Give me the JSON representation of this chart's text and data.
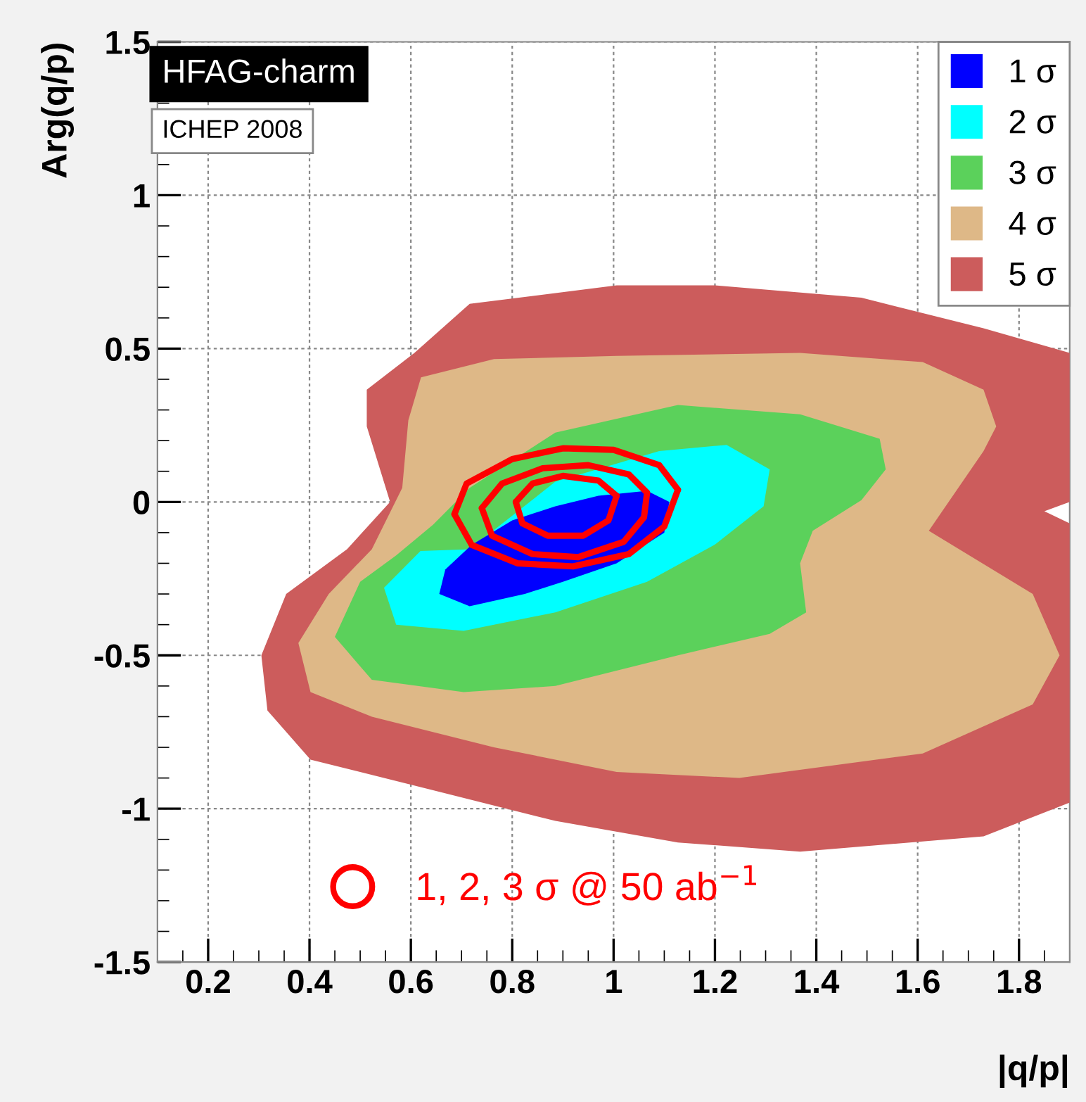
{
  "chart_data": {
    "type": "area",
    "xlabel": "|q/p|",
    "ylabel": "Arg(q/p)",
    "xlim": [
      0.1,
      1.9
    ],
    "ylim": [
      -1.5,
      1.5
    ],
    "xticks": [
      0.2,
      0.4,
      0.6,
      0.8,
      1,
      1.2,
      1.4,
      1.6,
      1.8
    ],
    "yticks": [
      -1.5,
      -1,
      -0.5,
      0,
      0.5,
      1,
      1.5
    ],
    "grid": true,
    "legend": "top right",
    "annotations": [
      "HFAG-charm",
      "ICHEP 2008"
    ],
    "series": [
      {
        "name": "1 σ",
        "color": "#0000ff",
        "x": [
          0.885,
          0.97,
          1.066,
          1.11,
          1.1,
          1.006,
          0.9,
          0.825,
          0.716,
          0.656,
          0.668,
          0.72,
          0.8
        ],
        "values": [
          -0.014,
          0.02,
          0.036,
          0.0,
          -0.1,
          -0.2,
          -0.26,
          -0.3,
          -0.34,
          -0.3,
          -0.22,
          -0.14,
          -0.06
        ]
      },
      {
        "name": "2 σ",
        "color": "#00ffff",
        "x": [
          0.716,
          0.885,
          1.09,
          1.223,
          1.308,
          1.296,
          1.199,
          1.066,
          0.885,
          0.704,
          0.571,
          0.547,
          0.619
        ],
        "values": [
          -0.154,
          0.066,
          0.166,
          0.186,
          0.106,
          -0.014,
          -0.14,
          -0.26,
          -0.36,
          -0.42,
          -0.4,
          -0.28,
          -0.16
        ]
      },
      {
        "name": "3 σ",
        "color": "#5bd15b",
        "x": [
          0.716,
          0.885,
          1.127,
          1.368,
          1.525,
          1.537,
          1.489,
          1.393,
          1.368,
          1.38,
          1.308,
          1.127,
          0.885,
          0.704,
          0.523,
          0.45,
          0.5,
          0.571,
          0.644
        ],
        "values": [
          0.046,
          0.226,
          0.316,
          0.286,
          0.206,
          0.106,
          0.006,
          -0.094,
          -0.2,
          -0.36,
          -0.43,
          -0.5,
          -0.6,
          -0.62,
          -0.58,
          -0.44,
          -0.26,
          -0.174,
          -0.074
        ]
      },
      {
        "name": "4 σ",
        "color": "#deb887",
        "x": [
          0.595,
          0.62,
          0.764,
          1.006,
          1.368,
          1.61,
          1.73,
          1.755,
          1.73,
          1.622,
          1.827,
          1.88,
          1.827,
          1.61,
          1.248,
          1.006,
          0.764,
          0.523,
          0.402,
          0.378,
          0.438,
          0.523,
          0.583
        ],
        "values": [
          0.266,
          0.406,
          0.466,
          0.476,
          0.486,
          0.456,
          0.366,
          0.246,
          0.166,
          -0.094,
          -0.3,
          -0.5,
          -0.66,
          -0.82,
          -0.9,
          -0.88,
          -0.8,
          -0.7,
          -0.62,
          -0.46,
          -0.3,
          -0.154,
          0.046
        ]
      },
      {
        "name": "5 σ",
        "color": "#cc5c5c",
        "x": [
          0.607,
          0.716,
          1.006,
          1.2,
          1.489,
          1.73,
          1.9,
          1.9,
          1.85,
          1.9,
          1.9,
          1.73,
          1.368,
          1.127,
          0.885,
          0.644,
          0.402,
          0.317,
          0.305,
          0.354,
          0.474,
          0.559,
          0.513,
          0.513
        ],
        "values": [
          0.486,
          0.646,
          0.706,
          0.706,
          0.666,
          0.566,
          0.486,
          0.0,
          -0.03,
          -0.07,
          -0.98,
          -1.09,
          -1.14,
          -1.11,
          -1.04,
          -0.94,
          -0.84,
          -0.68,
          -0.5,
          -0.3,
          -0.154,
          0.0,
          0.246,
          0.366
        ]
      },
      {
        "type": "line",
        "name": "1, 2, 3 σ @ 50 ab$^{−1}$",
        "color": "#ff0000",
        "x": [
          0.686,
          0.71,
          0.8,
          0.9,
          1.0,
          1.09,
          1.127
        ],
        "values": [
          -0.04,
          0.06,
          0.14,
          0.175,
          0.17,
          0.12,
          0.04
        ]
      },
      {
        "type": "line",
        "color": "#ff0000",
        "x": [
          0.686,
          0.72,
          0.81,
          0.92,
          1.03,
          1.1,
          1.127
        ],
        "values": [
          -0.04,
          -0.14,
          -0.2,
          -0.21,
          -0.17,
          -0.08,
          0.04
        ]
      },
      {
        "type": "line",
        "color": "#ff0000",
        "x": [
          0.74,
          0.78,
          0.86,
          0.95,
          1.03,
          1.066
        ],
        "values": [
          -0.02,
          0.06,
          0.11,
          0.12,
          0.09,
          0.03
        ]
      },
      {
        "type": "line",
        "color": "#ff0000",
        "x": [
          0.74,
          0.76,
          0.84,
          0.93,
          1.02,
          1.06,
          1.066
        ],
        "values": [
          -0.02,
          -0.11,
          -0.17,
          -0.18,
          -0.13,
          -0.05,
          0.03
        ]
      },
      {
        "type": "line",
        "color": "#ff0000",
        "x": [
          0.807,
          0.84,
          0.9,
          0.97,
          1.006
        ],
        "values": [
          0.0,
          0.06,
          0.085,
          0.07,
          0.02
        ]
      },
      {
        "type": "line",
        "color": "#ff0000",
        "x": [
          0.807,
          0.82,
          0.87,
          0.94,
          0.99,
          1.006
        ],
        "values": [
          0.0,
          -0.07,
          -0.11,
          -0.11,
          -0.06,
          0.02
        ]
      }
    ]
  }
}
